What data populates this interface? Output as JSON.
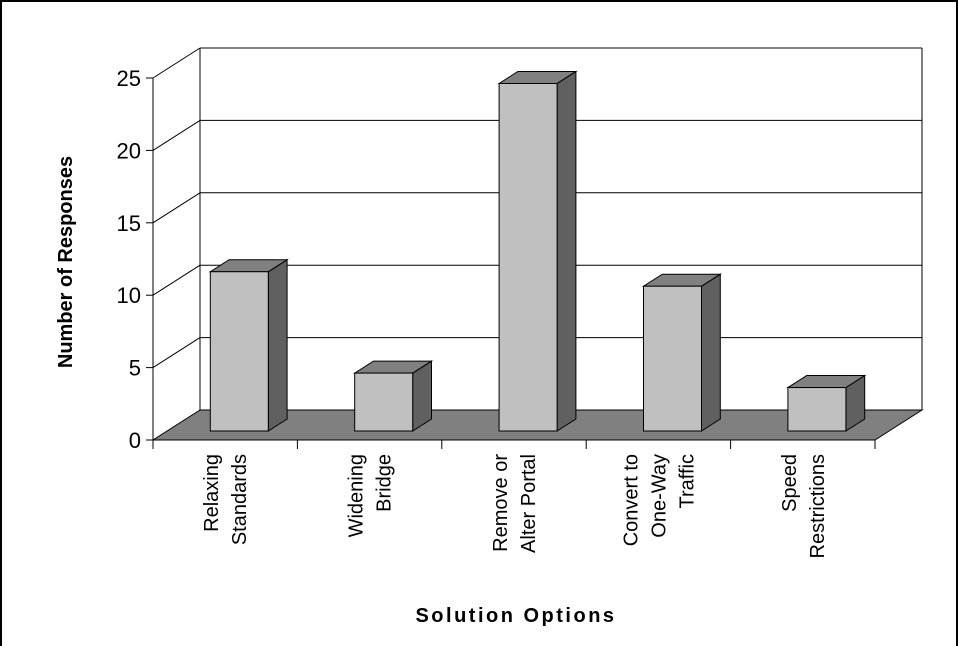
{
  "chart_data": {
    "type": "bar",
    "title": "",
    "xlabel": "Solution Options",
    "ylabel": "Number of Responses",
    "ylim": [
      0,
      25
    ],
    "yticks": [
      0,
      5,
      10,
      15,
      20,
      25
    ],
    "categories": [
      [
        "Relaxing",
        "Standards"
      ],
      [
        "Widening",
        "Bridge"
      ],
      [
        "Remove or",
        "Alter Portal"
      ],
      [
        "Convert to",
        "One-Way",
        "Traffic"
      ],
      [
        "Speed",
        "Restrictions"
      ]
    ],
    "values": [
      11,
      4,
      24,
      10,
      3
    ],
    "style": "3d-column",
    "grid": true,
    "legend": "none",
    "colors": {
      "bar_front": "#C0C0C0",
      "bar_side": "#606060",
      "bar_top": "#808080",
      "floor": "#808080",
      "axis": "#000000",
      "grid": "#000000"
    }
  }
}
